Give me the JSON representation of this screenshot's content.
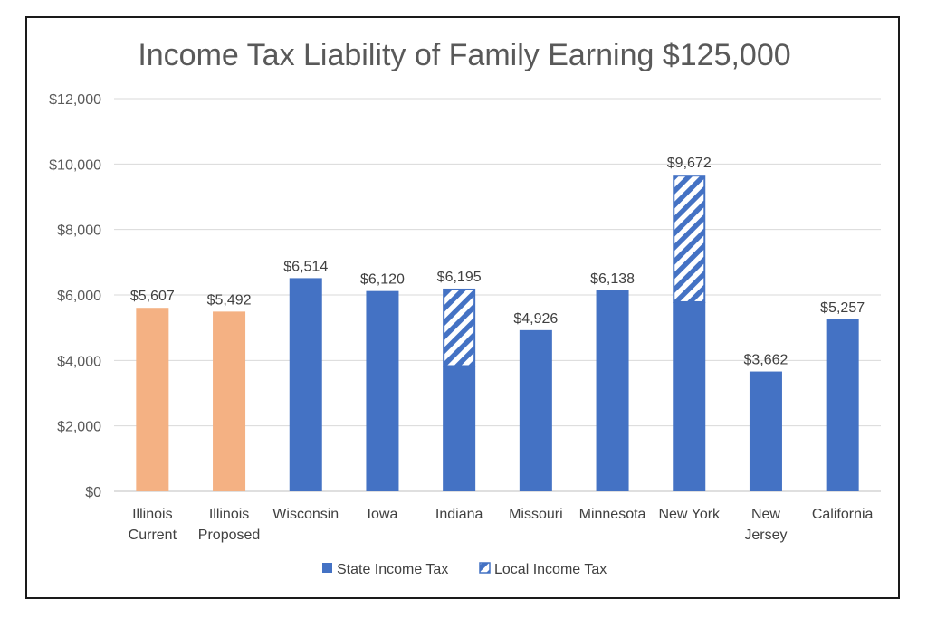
{
  "chart_data": {
    "type": "bar",
    "stacked": true,
    "title": "Income Tax Liability of Family Earning $125,000",
    "xlabel": "",
    "ylabel": "",
    "ylim": [
      0,
      12000
    ],
    "yticks": [
      0,
      2000,
      4000,
      6000,
      8000,
      10000,
      12000
    ],
    "ytick_labels": [
      "$0",
      "$2,000",
      "$4,000",
      "$6,000",
      "$8,000",
      "$10,000",
      "$12,000"
    ],
    "grid": true,
    "legend_position": "bottom",
    "categories": [
      [
        "Illinois",
        "Current"
      ],
      [
        "Illinois",
        "Proposed"
      ],
      [
        "Wisconsin"
      ],
      [
        "Iowa"
      ],
      [
        "Indiana"
      ],
      [
        "Missouri"
      ],
      [
        "Minnesota"
      ],
      [
        "New York"
      ],
      [
        "New",
        "Jersey"
      ],
      [
        "California"
      ]
    ],
    "series": [
      {
        "name": "State Income Tax",
        "values": [
          5607,
          5492,
          6514,
          6120,
          3830,
          4926,
          6138,
          5780,
          3662,
          5257
        ]
      },
      {
        "name": "Local Income Tax",
        "pattern": "hatched",
        "values": [
          0,
          0,
          0,
          0,
          2365,
          0,
          0,
          3892,
          0,
          0
        ]
      }
    ],
    "totals": [
      5607,
      5492,
      6514,
      6120,
      6195,
      4926,
      6138,
      9672,
      3662,
      5257
    ],
    "total_labels": [
      "$5,607",
      "$5,492",
      "$6,514",
      "$6,120",
      "$6,195",
      "$4,926",
      "$6,138",
      "$9,672",
      "$3,662",
      "$5,257"
    ],
    "bar_colors": [
      "#F4B183",
      "#F4B183",
      "#4472C4",
      "#4472C4",
      "#4472C4",
      "#4472C4",
      "#4472C4",
      "#4472C4",
      "#4472C4",
      "#4472C4"
    ],
    "colors": {
      "state": "#4472C4",
      "illinois": "#F4B183",
      "grid": "#D9D9D9",
      "axis": "#BFBFBF"
    }
  }
}
